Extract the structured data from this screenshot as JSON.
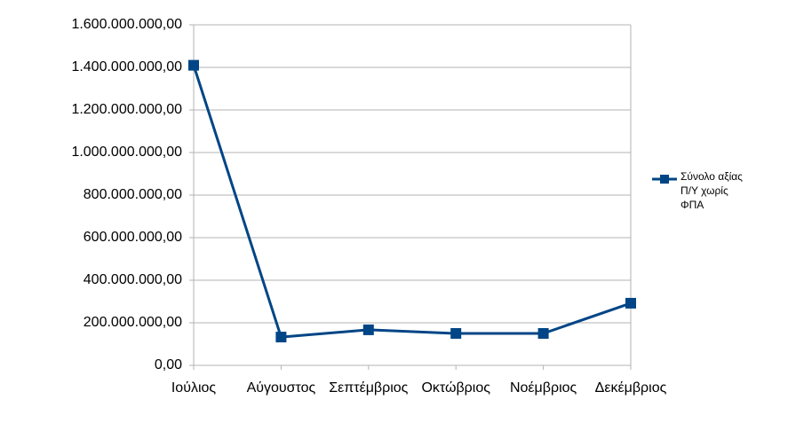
{
  "chart_data": {
    "type": "line",
    "categories": [
      "Ιούλιος",
      "Αύγουστος",
      "Σεπτέμβριος",
      "Οκτώβριος",
      "Νοέμβριος",
      "Δεκέμβριος"
    ],
    "series": [
      {
        "name": "Σύνολο αξίας Π/Υ χωρίς ΦΠΑ",
        "color": "#004586",
        "values": [
          1410000000,
          133000000,
          167000000,
          150000000,
          150000000,
          292000000
        ]
      }
    ],
    "ylim": [
      0,
      1600000000
    ],
    "yticks": [
      {
        "value": 0,
        "label": "0,00"
      },
      {
        "value": 200000000,
        "label": "200.000.000,00"
      },
      {
        "value": 400000000,
        "label": "400.000.000,00"
      },
      {
        "value": 600000000,
        "label": "600.000.000,00"
      },
      {
        "value": 800000000,
        "label": "800.000.000,00"
      },
      {
        "value": 1000000000,
        "label": "1.000.000.000,00"
      },
      {
        "value": 1200000000,
        "label": "1.200.000.000,00"
      },
      {
        "value": 1400000000,
        "label": "1.400.000.000,00"
      },
      {
        "value": 1600000000,
        "label": "1.600.000.000,00"
      }
    ],
    "grid": true,
    "legend": "right"
  }
}
